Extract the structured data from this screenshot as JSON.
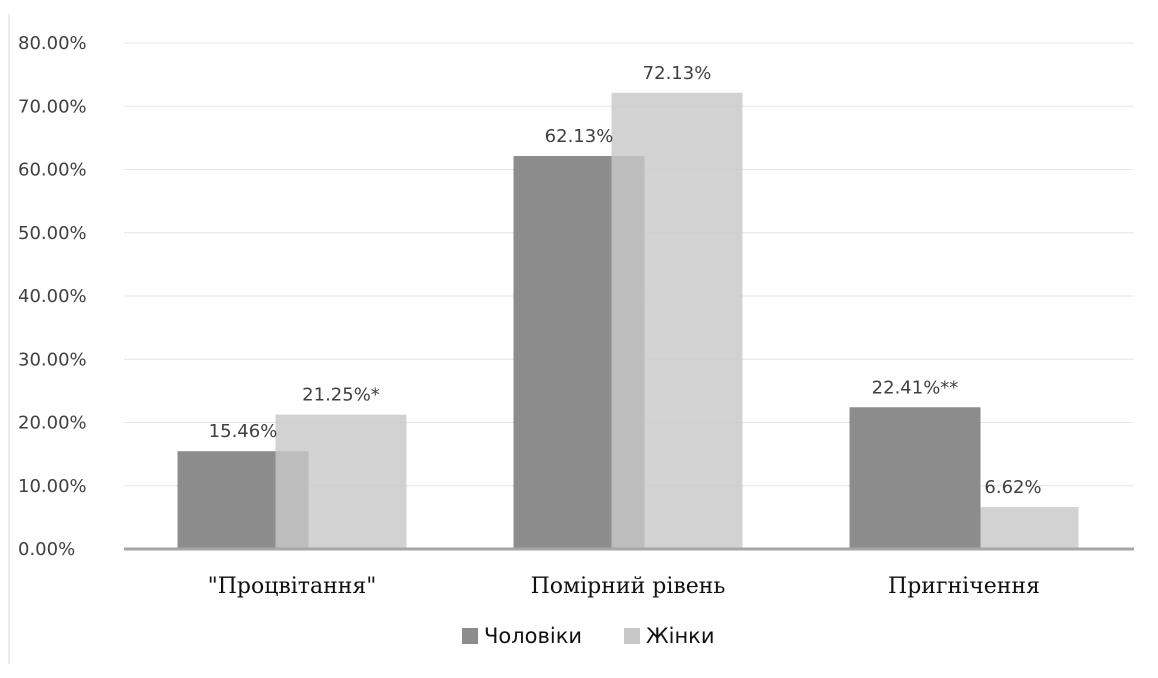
{
  "chart_data": {
    "type": "bar",
    "categories": [
      "\"Процвітання\"",
      "Помірний рівень",
      "Пригнічення"
    ],
    "series": [
      {
        "name": "Чоловіки",
        "values": [
          15.46,
          62.13,
          22.41
        ],
        "labels": [
          "15.46%",
          "62.13%",
          "22.41%**"
        ],
        "color": "#8c8c8c"
      },
      {
        "name": "Жінки",
        "values": [
          21.25,
          72.13,
          6.62
        ],
        "labels": [
          "21.25%*",
          "72.13%",
          "6.62%"
        ],
        "color": "#c8c8c8"
      }
    ],
    "y_ticks": [
      "0.00%",
      "10.00%",
      "20.00%",
      "30.00%",
      "40.00%",
      "50.00%",
      "60.00%",
      "70.00%",
      "80.00%"
    ],
    "ylim": [
      0,
      80
    ],
    "grid": true,
    "legend_position": "bottom",
    "title": "",
    "xlabel": "",
    "ylabel": ""
  }
}
